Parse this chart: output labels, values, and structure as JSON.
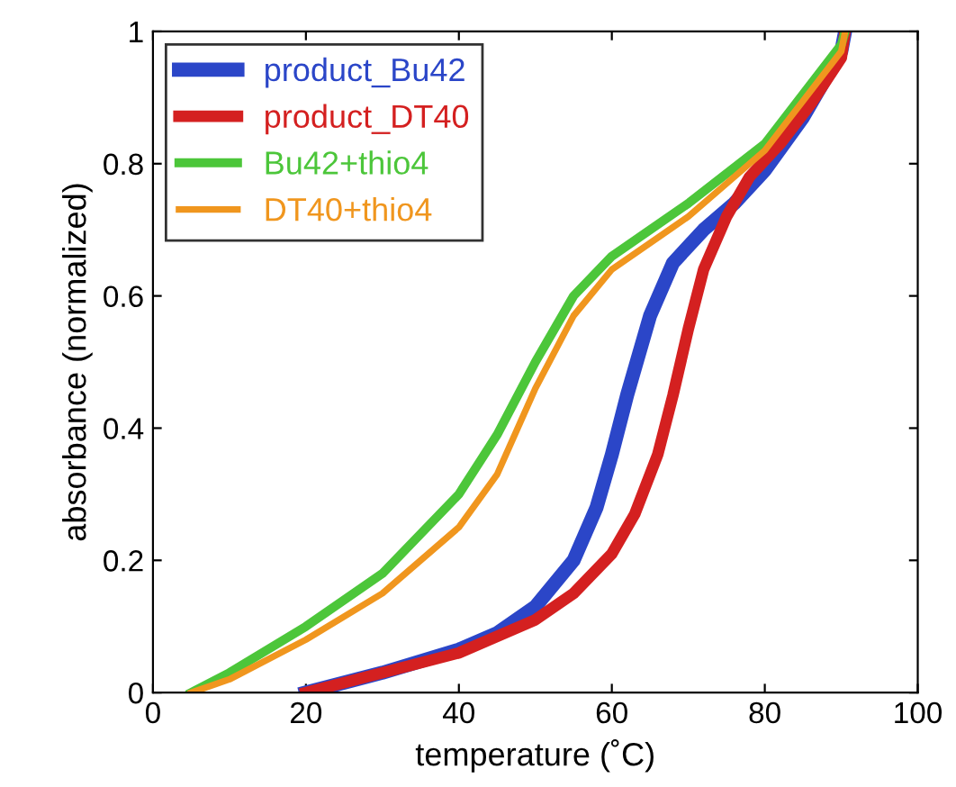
{
  "chart_data": {
    "type": "line",
    "xlabel": "temperature (˚C)",
    "ylabel": "absorbance (normalized)",
    "xlim": [
      0,
      100
    ],
    "xticks": [
      0,
      20,
      40,
      60,
      80,
      100
    ],
    "ylim": [
      0,
      1
    ],
    "yticks": [
      0,
      {
        "value": 0.2,
        "label": "0.2"
      },
      {
        "value": 0.4,
        "label": "0.4"
      },
      {
        "value": 0.6,
        "label": "0.6"
      },
      {
        "value": 0.8,
        "label": "0.8"
      },
      1
    ],
    "grid": false,
    "legend": "top left",
    "marker": "none",
    "line_style": "solid",
    "series": [
      {
        "name": "product_Bu42",
        "color": "#2b46c8",
        "x": [
          20,
          30,
          40,
          45,
          50,
          55,
          58,
          60,
          62,
          65,
          68,
          72,
          76,
          80,
          85,
          90,
          90.5
        ],
        "values": [
          0,
          0.03,
          0.065,
          0.09,
          0.13,
          0.2,
          0.28,
          0.36,
          0.45,
          0.57,
          0.65,
          0.7,
          0.74,
          0.79,
          0.87,
          0.97,
          1.0
        ]
      },
      {
        "name": "product_DT40",
        "color": "#d42020",
        "x": [
          20,
          30,
          40,
          50,
          55,
          60,
          63,
          66,
          68,
          70,
          72,
          75,
          78,
          82,
          86,
          90,
          90.5
        ],
        "values": [
          0,
          0.03,
          0.06,
          0.11,
          0.15,
          0.21,
          0.27,
          0.36,
          0.45,
          0.55,
          0.64,
          0.72,
          0.78,
          0.83,
          0.89,
          0.96,
          1.0
        ]
      },
      {
        "name": "Bu42+thio4",
        "color": "#4cc63a",
        "x": [
          5,
          10,
          20,
          30,
          40,
          45,
          50,
          55,
          60,
          70,
          80,
          90,
          90.5
        ],
        "values": [
          0,
          0.03,
          0.1,
          0.18,
          0.3,
          0.39,
          0.5,
          0.6,
          0.66,
          0.74,
          0.83,
          0.98,
          1.0
        ]
      },
      {
        "name": "DT40+thio4",
        "color": "#f0961e",
        "x": [
          5,
          10,
          20,
          30,
          40,
          45,
          50,
          55,
          60,
          70,
          80,
          90,
          90.5
        ],
        "values": [
          0,
          0.02,
          0.08,
          0.15,
          0.25,
          0.33,
          0.46,
          0.57,
          0.64,
          0.72,
          0.82,
          0.97,
          1.0
        ]
      }
    ]
  }
}
